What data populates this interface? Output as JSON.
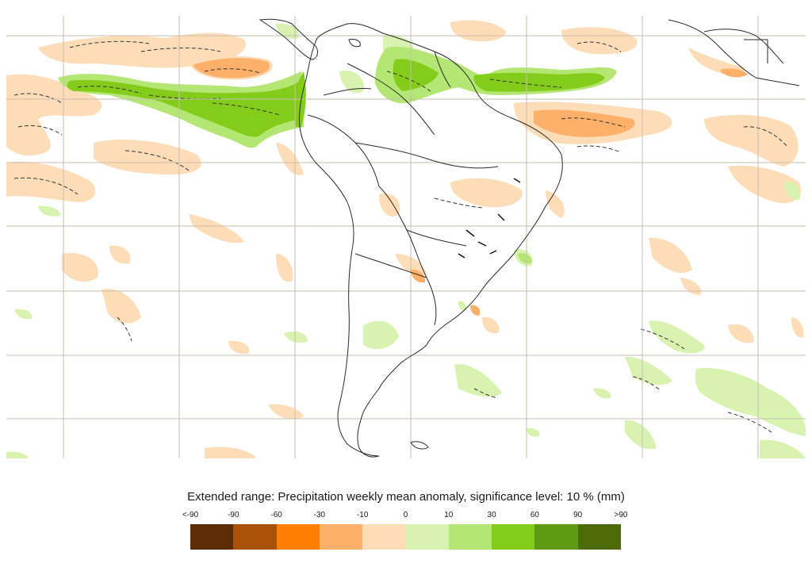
{
  "legend": {
    "title": "Extended range: Precipitation weekly mean anomaly, significance level: 10 % (mm)",
    "tick_labels": [
      "<-90",
      "-90",
      "-60",
      "-30",
      "-10",
      "0",
      "10",
      "30",
      "60",
      "90",
      ">90"
    ],
    "colors": [
      "#5c2c06",
      "#a85208",
      "#ff8000",
      "#fdb06a",
      "#fddcb8",
      "#d8f2b0",
      "#b3e673",
      "#84cc1a",
      "#5e9a12",
      "#4d6b06"
    ]
  },
  "map": {
    "region": "South America and surrounding oceans",
    "gridline_color": "#c9beb0",
    "coastline_color": "#2b2b2b",
    "dry_anomaly_color": "#fddcb8",
    "dry_strong_color": "#fdb06a",
    "wet_anomaly_color": "#d8f2b0",
    "wet_mid_color": "#b3e673",
    "wet_strong_color": "#84cc1a"
  }
}
